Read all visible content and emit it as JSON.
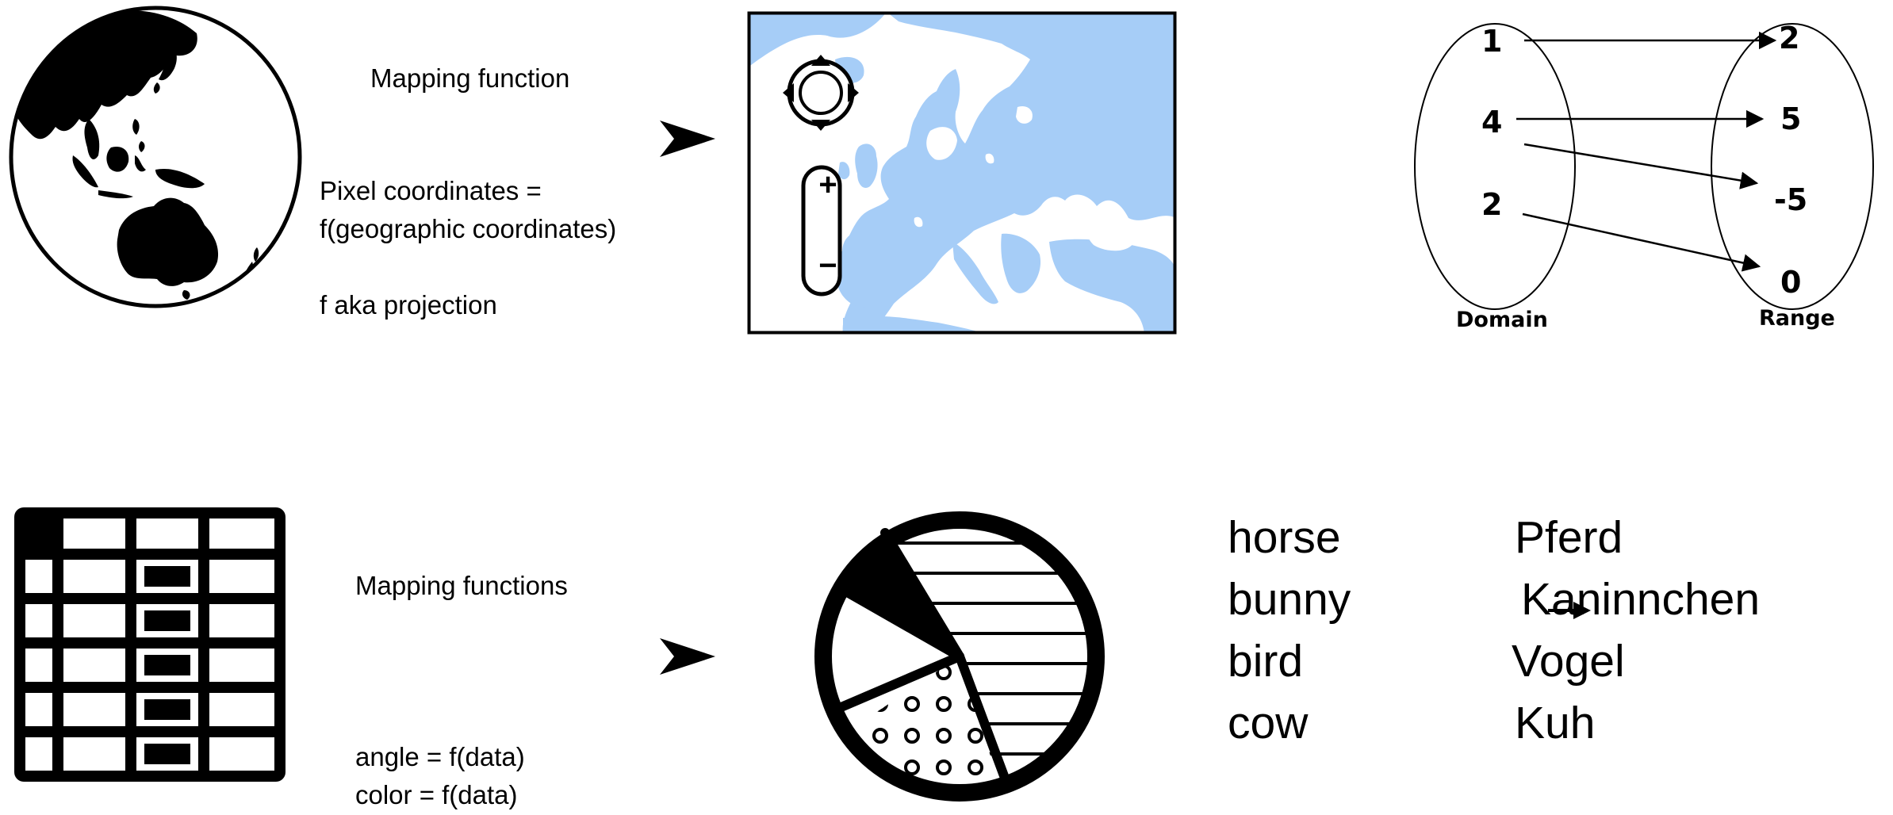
{
  "globe_panel": {
    "title": "Mapping function",
    "formula_line1": "Pixel coordinates =",
    "formula_line2": "f(geographic coordinates)",
    "note": "f aka projection"
  },
  "web_map": {
    "zoom_in_label": "+",
    "zoom_out_label": "−",
    "water_color": "#ffffff",
    "land_color": "#a6cdf7"
  },
  "function_mapping": {
    "domain_label": "Domain",
    "range_label": "Range",
    "domain": [
      "1",
      "4",
      "2"
    ],
    "range": [
      "2",
      "5",
      "-5",
      "0"
    ],
    "pairs": [
      {
        "from": "1",
        "to": "2"
      },
      {
        "from": "4",
        "to": "5"
      },
      {
        "from": "4",
        "to": "-5"
      },
      {
        "from": "2",
        "to": "0"
      }
    ]
  },
  "table_panel": {
    "title": "Mapping functions",
    "formula_angle": "angle = f(data)",
    "formula_color": "color = f(data)"
  },
  "translation": {
    "english": [
      "horse",
      "bunny",
      "bird",
      "cow"
    ],
    "german": [
      "Pferd",
      "Kaninnchen",
      "Vogel",
      "Kuh"
    ]
  }
}
